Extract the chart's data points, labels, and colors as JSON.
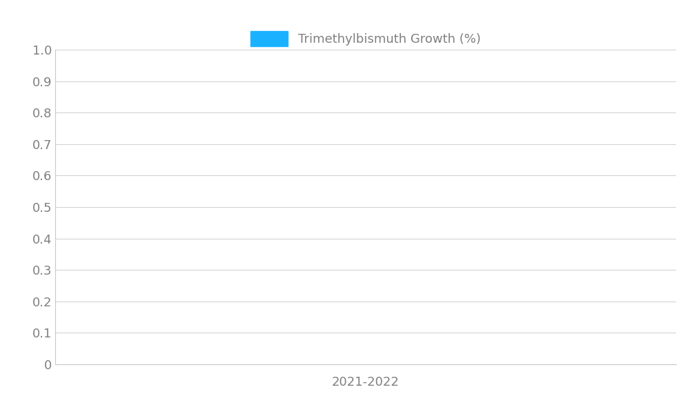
{
  "legend_label": "Trimethylbismuth Growth (%)",
  "legend_color": "#1ab2ff",
  "xlabel": "2021-2022",
  "xlabel_fontsize": 13,
  "ylabel_ticks": [
    0,
    0.1,
    0.2,
    0.3,
    0.4,
    0.5,
    0.6,
    0.7,
    0.8,
    0.9,
    1.0
  ],
  "ylim": [
    0,
    1.0
  ],
  "tick_color": "#808080",
  "tick_fontsize": 13,
  "grid_color": "#d3d3d3",
  "background_color": "#ffffff",
  "bar_color": "#1ab2ff",
  "legend_fontsize": 13,
  "spine_color": "#c8c8c8",
  "left_spine_color": "#c8c8c8"
}
